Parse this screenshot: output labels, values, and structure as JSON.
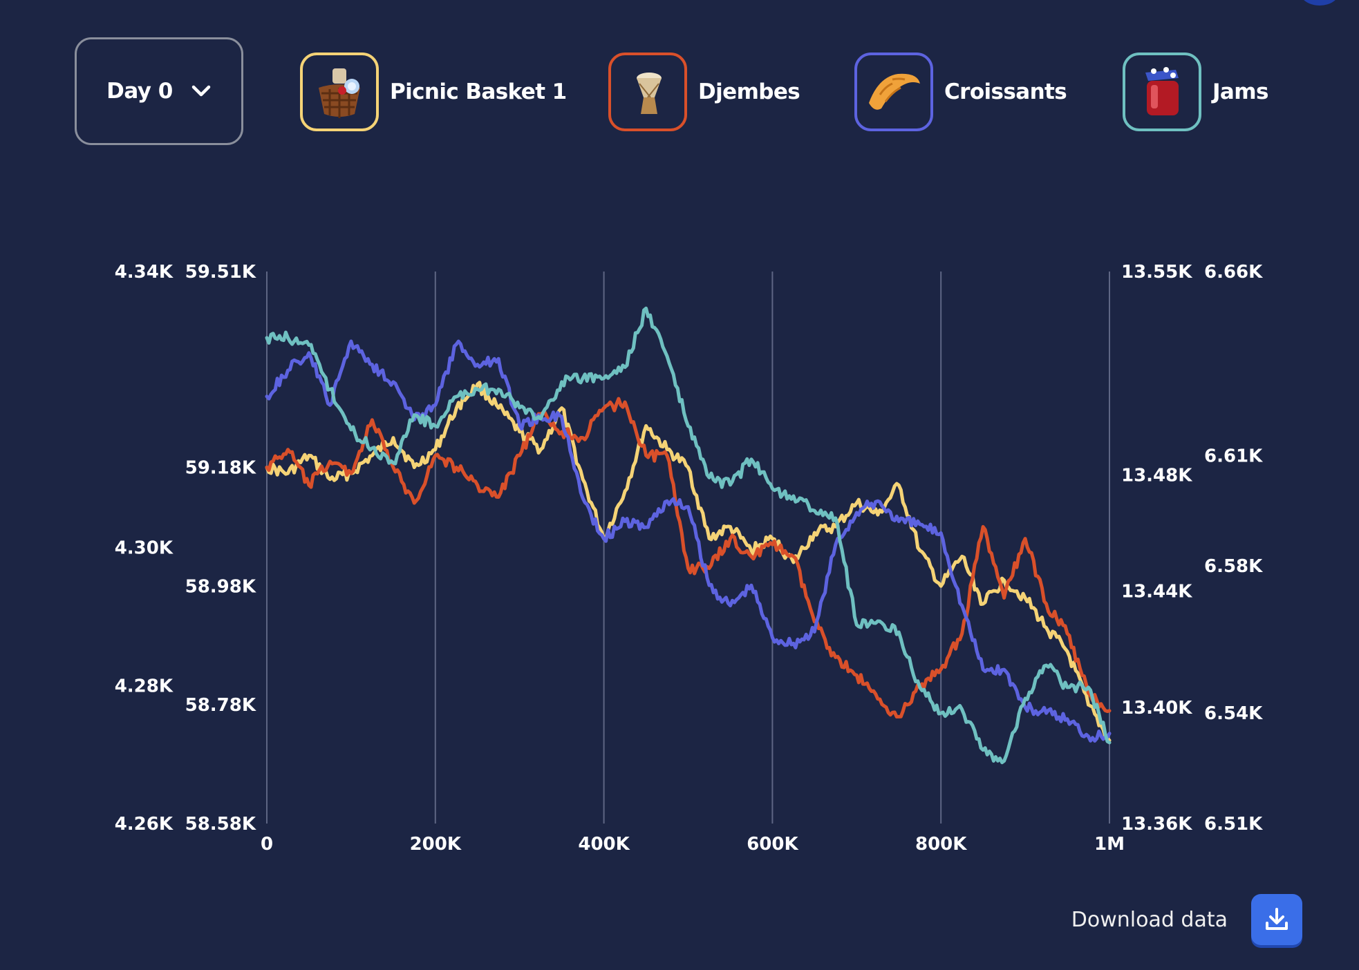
{
  "day_selector": {
    "label": "Day 0"
  },
  "legend": [
    {
      "label": "Picnic Basket 1",
      "color": "#f5d376",
      "icon": "picnic-basket-icon"
    },
    {
      "label": "Djembes",
      "color": "#d9502a",
      "icon": "djembe-drum-icon"
    },
    {
      "label": "Croissants",
      "color": "#5d63e0",
      "icon": "croissant-icon"
    },
    {
      "label": "Jams",
      "color": "#6fc0c1",
      "icon": "jam-jar-icon"
    }
  ],
  "download": {
    "label": "Download data",
    "icon": "download-icon"
  },
  "chart_data": {
    "type": "line",
    "x_ticks": [
      "0",
      "200K",
      "400K",
      "600K",
      "800K",
      "1M"
    ],
    "x_range": [
      0,
      1000000
    ],
    "grid": "vertical",
    "axes": {
      "left_outer": {
        "ticks": [
          "4.34K",
          "4.30K",
          "4.28K",
          "4.26K"
        ],
        "tick_values": [
          4340,
          4300,
          4280,
          4260
        ],
        "range": [
          4260,
          4340
        ]
      },
      "left_inner": {
        "ticks": [
          "59.51K",
          "59.18K",
          "58.98K",
          "58.78K",
          "58.58K"
        ],
        "tick_values": [
          59510,
          59180,
          58980,
          58780,
          58580
        ],
        "range": [
          58580,
          59510
        ]
      },
      "right_inner": {
        "ticks": [
          "13.55K",
          "13.48K",
          "13.44K",
          "13.40K",
          "13.36K"
        ],
        "tick_values": [
          13550,
          13480,
          13440,
          13400,
          13360
        ],
        "range": [
          13360,
          13550
        ]
      },
      "right_outer": {
        "ticks": [
          "6.66K",
          "6.61K",
          "6.58K",
          "6.54K",
          "6.51K"
        ],
        "tick_values": [
          6660,
          6610,
          6580,
          6540,
          6510
        ],
        "range": [
          6510,
          6660
        ]
      }
    },
    "series": [
      {
        "name": "Picnic Basket 1",
        "color": "#f5d376",
        "axis": "left_inner",
        "x": [
          0,
          25000,
          50000,
          75000,
          100000,
          125000,
          150000,
          175000,
          200000,
          225000,
          250000,
          275000,
          300000,
          325000,
          350000,
          375000,
          400000,
          425000,
          450000,
          475000,
          500000,
          525000,
          550000,
          575000,
          600000,
          625000,
          650000,
          675000,
          700000,
          725000,
          750000,
          775000,
          800000,
          825000,
          850000,
          875000,
          900000,
          925000,
          950000,
          975000,
          1000000
        ],
        "values": [
          59180,
          59170,
          59200,
          59160,
          59170,
          59200,
          59230,
          59180,
          59210,
          59280,
          59320,
          59280,
          59240,
          59210,
          59280,
          59160,
          59060,
          59140,
          59250,
          59210,
          59180,
          59060,
          59080,
          59040,
          59060,
          59020,
          59070,
          59080,
          59120,
          59100,
          59150,
          59040,
          58980,
          59030,
          58950,
          58990,
          58960,
          58910,
          58870,
          58780,
          58720
        ]
      },
      {
        "name": "Djembes",
        "color": "#d9502a",
        "axis": "left_inner",
        "x": [
          0,
          25000,
          50000,
          75000,
          100000,
          125000,
          150000,
          175000,
          200000,
          225000,
          250000,
          275000,
          300000,
          325000,
          350000,
          375000,
          400000,
          425000,
          450000,
          475000,
          500000,
          525000,
          550000,
          575000,
          600000,
          625000,
          650000,
          675000,
          700000,
          725000,
          750000,
          775000,
          800000,
          825000,
          850000,
          875000,
          900000,
          925000,
          950000,
          975000,
          1000000
        ],
        "values": [
          59180,
          59210,
          59150,
          59190,
          59170,
          59260,
          59180,
          59120,
          59200,
          59180,
          59150,
          59130,
          59200,
          59270,
          59240,
          59230,
          59280,
          59290,
          59200,
          59200,
          59010,
          59010,
          59060,
          59030,
          59050,
          59030,
          58920,
          58860,
          58830,
          58790,
          58760,
          58810,
          58840,
          58900,
          59080,
          58960,
          59060,
          58950,
          58900,
          58800,
          58770
        ]
      },
      {
        "name": "Croissants",
        "color": "#5d63e0",
        "axis": "right_inner",
        "x": [
          0,
          25000,
          50000,
          75000,
          100000,
          125000,
          150000,
          175000,
          200000,
          225000,
          250000,
          275000,
          300000,
          325000,
          350000,
          375000,
          400000,
          425000,
          450000,
          475000,
          500000,
          525000,
          550000,
          575000,
          600000,
          625000,
          650000,
          675000,
          700000,
          725000,
          750000,
          775000,
          800000,
          825000,
          850000,
          875000,
          900000,
          925000,
          950000,
          975000,
          1000000
        ],
        "values": [
          13507,
          13516,
          13522,
          13504,
          13526,
          13518,
          13512,
          13499,
          13504,
          13525,
          13518,
          13520,
          13497,
          13500,
          13500,
          13472,
          13458,
          13464,
          13462,
          13471,
          13469,
          13442,
          13435,
          13442,
          13424,
          13422,
          13426,
          13456,
          13467,
          13471,
          13464,
          13463,
          13460,
          13435,
          13413,
          13413,
          13400,
          13398,
          13396,
          13390,
          13391
        ]
      },
      {
        "name": "Jams",
        "color": "#6fc0c1",
        "axis": "right_outer",
        "x": [
          0,
          25000,
          50000,
          75000,
          100000,
          125000,
          150000,
          175000,
          200000,
          225000,
          250000,
          275000,
          300000,
          325000,
          350000,
          375000,
          400000,
          425000,
          450000,
          475000,
          500000,
          525000,
          550000,
          575000,
          600000,
          625000,
          650000,
          675000,
          700000,
          725000,
          750000,
          775000,
          800000,
          825000,
          850000,
          875000,
          900000,
          925000,
          950000,
          975000,
          1000000
        ],
        "values": [
          6642,
          6642,
          6640,
          6628,
          6617,
          6612,
          6608,
          6621,
          6618,
          6626,
          6628,
          6628,
          6623,
          6620,
          6630,
          6631,
          6631,
          6634,
          6650,
          6637,
          6618,
          6604,
          6602,
          6609,
          6601,
          6599,
          6595,
          6593,
          6564,
          6565,
          6562,
          6547,
          6540,
          6541,
          6530,
          6527,
          6544,
          6553,
          6547,
          6547,
          6532
        ]
      }
    ]
  }
}
